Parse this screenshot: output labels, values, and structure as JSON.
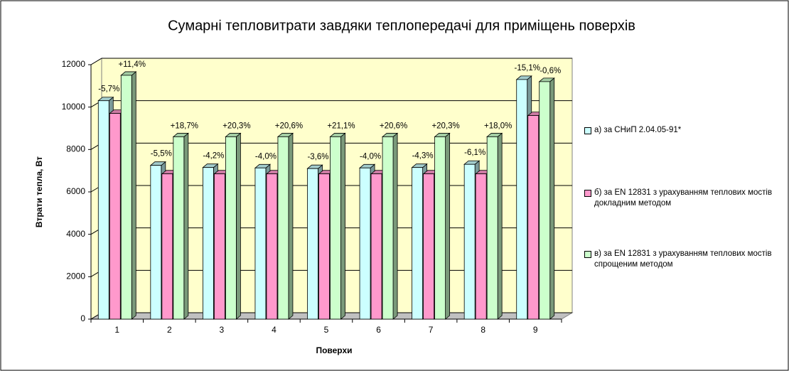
{
  "chart_data": {
    "type": "bar3d",
    "title": "Сумарні тепловитрати завдяки теплопередачі для приміщень поверхів",
    "x_label": "Поверхи",
    "y_label": "Втрати тепла, Вт",
    "categories": [
      "1",
      "2",
      "3",
      "4",
      "5",
      "6",
      "7",
      "8",
      "9"
    ],
    "series": [
      {
        "name": "а) за СНиП 2.04.05-91*",
        "color": "#ccffff",
        "values": [
          10300,
          7250,
          7150,
          7130,
          7100,
          7130,
          7150,
          7300,
          11300
        ]
      },
      {
        "name": "б) за EN 12831 з урахуванням теплових мостів докладним методом",
        "color": "#ff99cc",
        "values": [
          9700,
          6850,
          6850,
          6850,
          6850,
          6850,
          6850,
          6850,
          9600
        ],
        "labels": [
          "-5,7%",
          "-5,5%",
          "-4,2%",
          "-4,0%",
          "-3,6%",
          "-4,0%",
          "-4,3%",
          "-6,1%",
          "-15,1%"
        ]
      },
      {
        "name": "в) за EN 12831 з урахуванням теплових мостів спрощеним методом",
        "color": "#ccffcc",
        "values": [
          11500,
          8600,
          8600,
          8600,
          8600,
          8600,
          8600,
          8600,
          11200
        ],
        "labels": [
          "+11,4%",
          "+18,7%",
          "+20,3%",
          "+20,6%",
          "+21,1%",
          "+20,6%",
          "+20,3%",
          "+18,0%",
          "-0,6%"
        ]
      }
    ],
    "ylim": [
      0,
      12000
    ],
    "yticks": [
      0,
      2000,
      4000,
      6000,
      8000,
      10000,
      12000
    ],
    "grid": true,
    "legend": "right",
    "wall_color": "#ffffcc",
    "floor_color": "#c0c0c0"
  }
}
